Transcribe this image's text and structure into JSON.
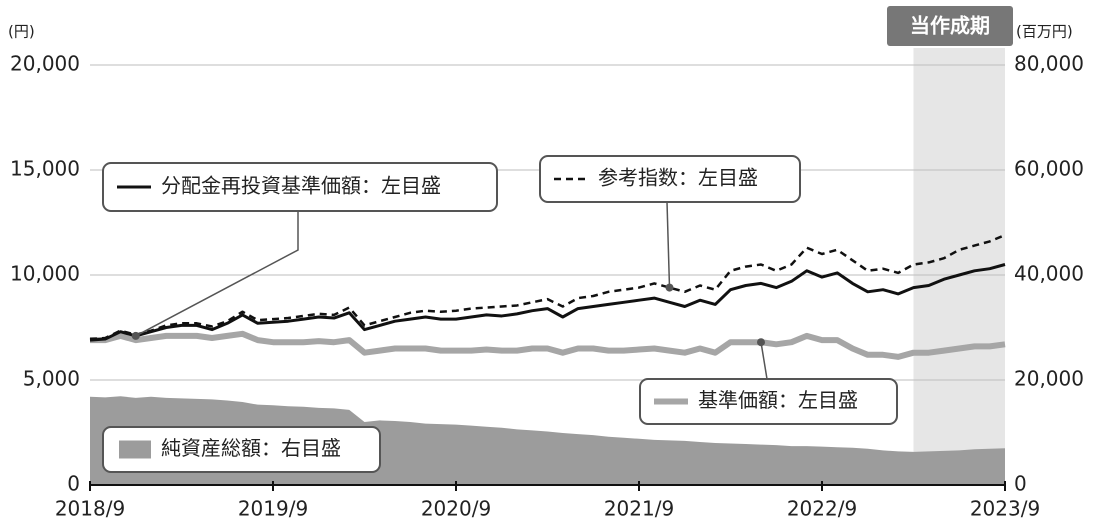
{
  "chart_data": {
    "type": "line",
    "y_unit": "(円)",
    "y2_unit": "(百万円)",
    "period": {
      "label": "当作成期",
      "start": "2023/3",
      "end": "2023/9"
    },
    "categories": [
      "2018/9",
      "2018/10",
      "2018/11",
      "2018/12",
      "2019/1",
      "2019/2",
      "2019/3",
      "2019/4",
      "2019/5",
      "2019/6",
      "2019/7",
      "2019/8",
      "2019/9",
      "2019/10",
      "2019/11",
      "2019/12",
      "2020/1",
      "2020/2",
      "2020/3",
      "2020/4",
      "2020/5",
      "2020/6",
      "2020/7",
      "2020/8",
      "2020/9",
      "2020/10",
      "2020/11",
      "2020/12",
      "2021/1",
      "2021/2",
      "2021/3",
      "2021/4",
      "2021/5",
      "2021/6",
      "2021/7",
      "2021/8",
      "2021/9",
      "2021/10",
      "2021/11",
      "2021/12",
      "2022/1",
      "2022/2",
      "2022/3",
      "2022/4",
      "2022/5",
      "2022/6",
      "2022/7",
      "2022/8",
      "2022/9",
      "2022/10",
      "2022/11",
      "2022/12",
      "2023/1",
      "2023/2",
      "2023/3",
      "2023/4",
      "2023/5",
      "2023/6",
      "2023/7",
      "2023/8",
      "2023/9"
    ],
    "xtick_indices": [
      0,
      12,
      24,
      36,
      48,
      60
    ],
    "series": [
      {
        "name": "純資産総額：右目盛",
        "mark": "area",
        "axis": "y2",
        "color": "#9c9c9c",
        "values": [
          16800,
          16700,
          16900,
          16600,
          16800,
          16600,
          16500,
          16400,
          16300,
          16100,
          15800,
          15300,
          15200,
          15000,
          14900,
          14700,
          14600,
          14300,
          12000,
          12300,
          12200,
          12000,
          11700,
          11600,
          11500,
          11300,
          11100,
          10900,
          10600,
          10400,
          10200,
          9900,
          9700,
          9500,
          9200,
          9000,
          8800,
          8600,
          8500,
          8400,
          8200,
          8000,
          7900,
          7800,
          7700,
          7600,
          7400,
          7400,
          7300,
          7200,
          7100,
          6900,
          6600,
          6400,
          6300,
          6400,
          6500,
          6600,
          6800,
          6900,
          7000
        ]
      },
      {
        "name": "基準価額：左目盛",
        "mark": "line",
        "line_style": "solid",
        "width": 6,
        "color": "#a6a6a6",
        "values": [
          6900,
          6900,
          7100,
          6900,
          7000,
          7100,
          7100,
          7100,
          7000,
          7100,
          7200,
          6900,
          6800,
          6800,
          6800,
          6850,
          6800,
          6900,
          6300,
          6400,
          6500,
          6500,
          6500,
          6400,
          6400,
          6400,
          6450,
          6400,
          6400,
          6500,
          6500,
          6300,
          6500,
          6500,
          6400,
          6400,
          6450,
          6500,
          6400,
          6300,
          6500,
          6300,
          6800,
          6800,
          6800,
          6700,
          6800,
          7100,
          6900,
          6900,
          6500,
          6200,
          6200,
          6100,
          6300,
          6300,
          6400,
          6500,
          6600,
          6600,
          6700
        ]
      },
      {
        "name": "参考指数：左目盛",
        "mark": "line",
        "line_style": "dashed",
        "width": 2.5,
        "color": "#111111",
        "values": [
          6950,
          7000,
          7350,
          7150,
          7350,
          7600,
          7700,
          7700,
          7550,
          7800,
          8250,
          7850,
          7900,
          7950,
          8050,
          8150,
          8100,
          8450,
          7600,
          7800,
          8000,
          8200,
          8300,
          8250,
          8300,
          8400,
          8450,
          8500,
          8550,
          8700,
          8850,
          8500,
          8900,
          9000,
          9200,
          9300,
          9400,
          9600,
          9400,
          9200,
          9500,
          9300,
          10200,
          10400,
          10500,
          10200,
          10500,
          11300,
          11000,
          11200,
          10700,
          10200,
          10300,
          10100,
          10500,
          10600,
          10800,
          11200,
          11400,
          11600,
          11900
        ]
      },
      {
        "name": "分配金再投資基準価額：左目盛",
        "mark": "line",
        "line_style": "solid",
        "width": 3,
        "color": "#111111",
        "values": [
          6900,
          6950,
          7300,
          7100,
          7300,
          7500,
          7600,
          7600,
          7400,
          7700,
          8100,
          7700,
          7750,
          7800,
          7900,
          8000,
          7950,
          8200,
          7400,
          7600,
          7800,
          7900,
          8000,
          7900,
          7900,
          8000,
          8100,
          8050,
          8150,
          8300,
          8400,
          8000,
          8400,
          8500,
          8600,
          8700,
          8800,
          8900,
          8700,
          8500,
          8800,
          8600,
          9300,
          9500,
          9600,
          9400,
          9700,
          10200,
          9900,
          10100,
          9600,
          9200,
          9300,
          9100,
          9400,
          9500,
          9800,
          10000,
          10200,
          10300,
          10500
        ]
      }
    ],
    "ylim": [
      0,
      20000
    ],
    "yticks": [
      0,
      {
        "value": 5000,
        "label": "5,000"
      },
      {
        "value": 10000,
        "label": "10,000"
      },
      {
        "value": 15000,
        "label": "15,000"
      },
      {
        "value": 20000,
        "label": "20,000"
      }
    ],
    "y2lim": [
      0,
      80000
    ],
    "y2ticks": [
      0,
      {
        "value": 20000,
        "label": "20,000"
      },
      {
        "value": 40000,
        "label": "40,000"
      },
      {
        "value": 60000,
        "label": "60,000"
      },
      {
        "value": 80000,
        "label": "80,000"
      }
    ],
    "grid": true
  }
}
